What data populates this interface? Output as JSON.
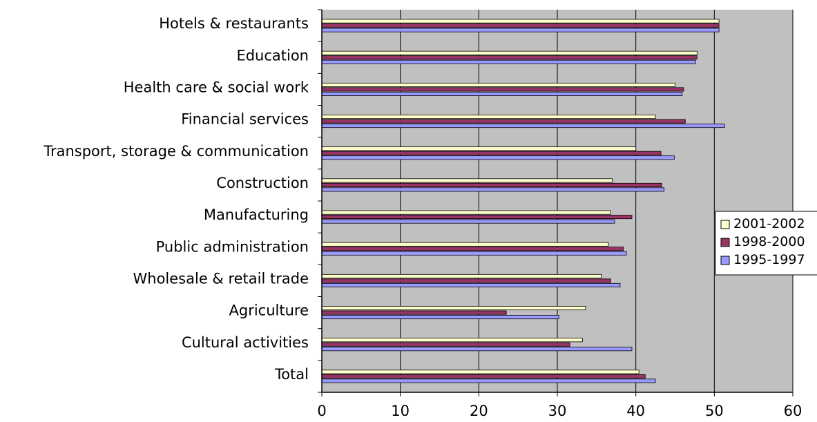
{
  "chart_data": {
    "type": "bar",
    "orientation": "horizontal",
    "categories": [
      "Hotels & restaurants",
      "Education",
      "Health care & social work",
      "Financial services",
      "Transport, storage & communication",
      "Construction",
      "Manufacturing",
      "Public administration",
      "Wholesale & retail trade",
      "Agriculture",
      "Cultural activities",
      "Total"
    ],
    "series": [
      {
        "name": "2001-2002",
        "color": "#ffffcc",
        "values": [
          50.6,
          47.8,
          45.0,
          42.5,
          40.0,
          37.0,
          36.8,
          36.5,
          35.6,
          33.6,
          33.2,
          40.4
        ]
      },
      {
        "name": "1998-2000",
        "color": "#993366",
        "values": [
          50.6,
          47.8,
          46.1,
          46.3,
          43.2,
          43.3,
          39.5,
          38.4,
          36.8,
          23.5,
          31.6,
          41.2
        ]
      },
      {
        "name": "1995-1997",
        "color": "#9999ff",
        "values": [
          50.6,
          47.6,
          45.9,
          51.3,
          44.9,
          43.6,
          37.3,
          38.8,
          38.0,
          30.2,
          39.5,
          42.5
        ]
      }
    ],
    "xlim": [
      0,
      60
    ],
    "xticks": [
      "0",
      "10",
      "20",
      "30",
      "40",
      "50",
      "60"
    ],
    "grid": true,
    "plot_background": "#c0c0c0",
    "legend_position": "right"
  }
}
